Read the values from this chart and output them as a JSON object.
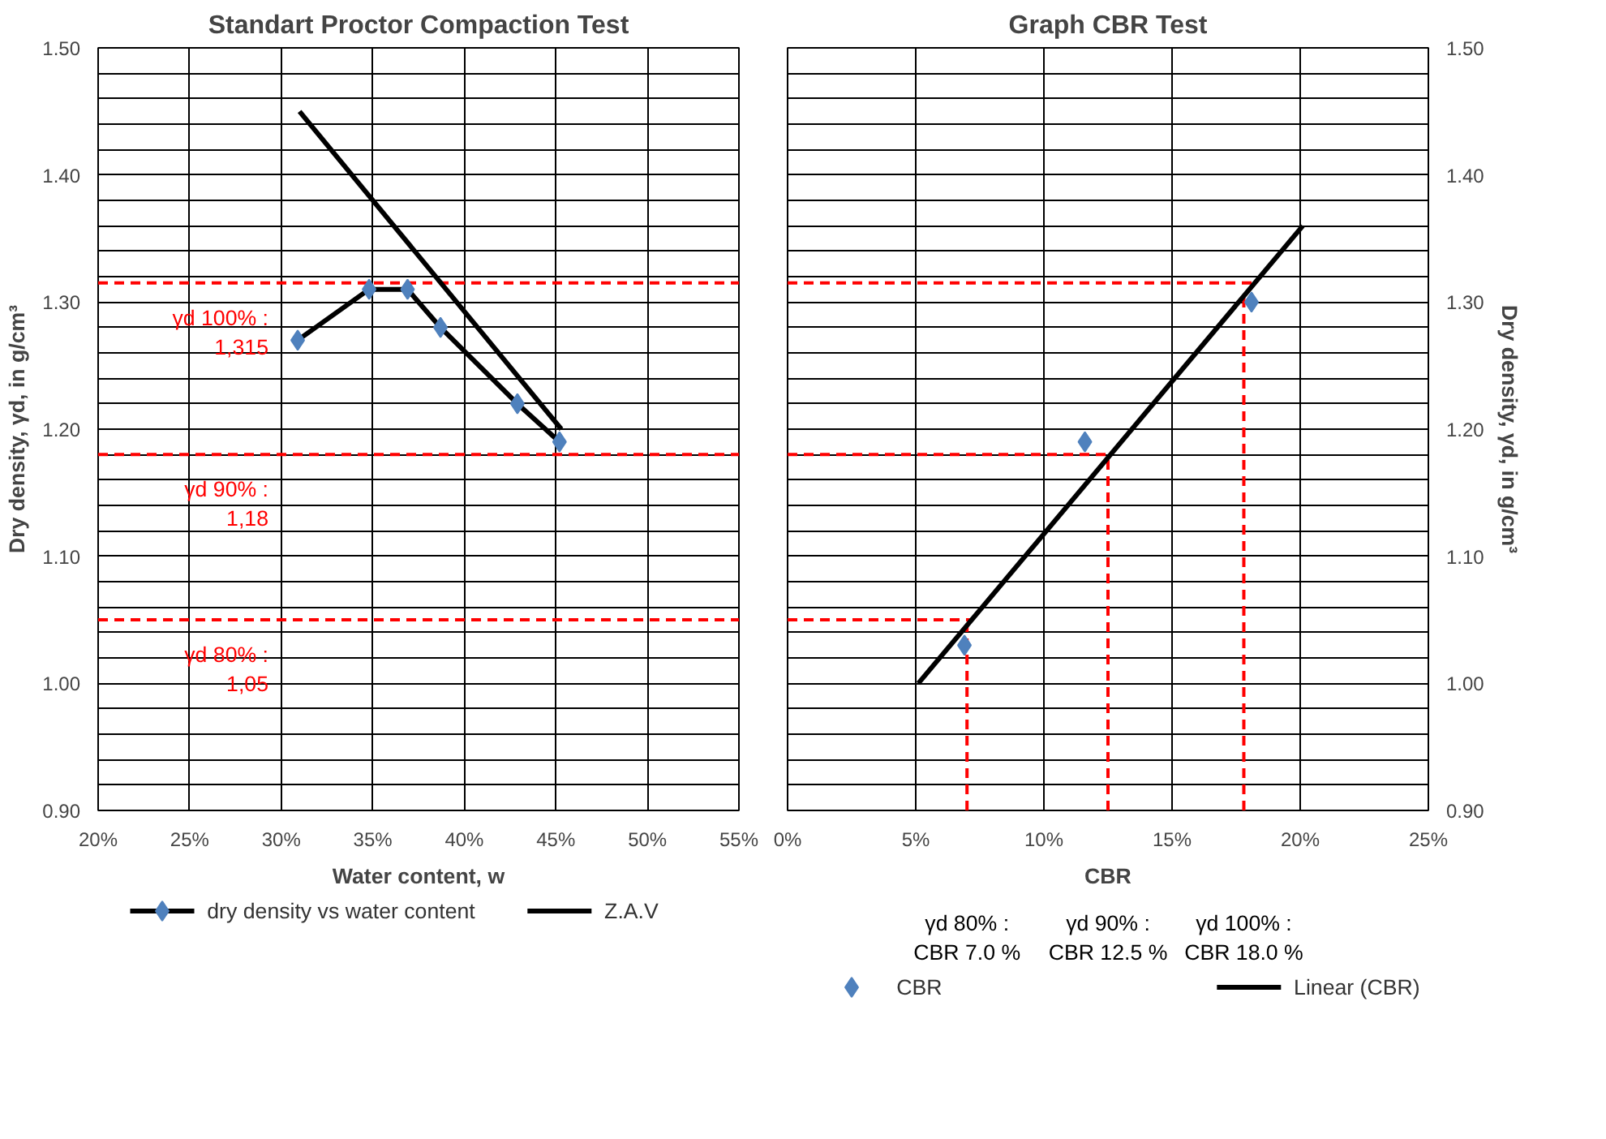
{
  "chart_data": [
    {
      "type": "line",
      "title": "Standart Proctor Compaction Test",
      "xlabel": "Water content, w",
      "ylabel": "Dry density, γd, in g/cm³",
      "xlim": [
        20,
        55
      ],
      "xticks": [
        {
          "value": 20,
          "label": "20%"
        },
        {
          "value": 25,
          "label": "25%"
        },
        {
          "value": 30,
          "label": "30%"
        },
        {
          "value": 35,
          "label": "35%"
        },
        {
          "value": 40,
          "label": "40%"
        },
        {
          "value": 45,
          "label": "45%"
        },
        {
          "value": 50,
          "label": "50%"
        },
        {
          "value": 55,
          "label": "55%"
        }
      ],
      "ylim": [
        0.9,
        1.5
      ],
      "yticks": [
        {
          "value": 0.9,
          "label": "0.90"
        },
        {
          "value": 0.92,
          "label": null
        },
        {
          "value": 0.94,
          "label": null
        },
        {
          "value": 0.96,
          "label": null
        },
        {
          "value": 0.98,
          "label": null
        },
        {
          "value": 1.0,
          "label": "1.00"
        },
        {
          "value": 1.02,
          "label": null
        },
        {
          "value": 1.04,
          "label": null
        },
        {
          "value": 1.06,
          "label": null
        },
        {
          "value": 1.08,
          "label": null
        },
        {
          "value": 1.1,
          "label": "1.10"
        },
        {
          "value": 1.12,
          "label": null
        },
        {
          "value": 1.14,
          "label": null
        },
        {
          "value": 1.16,
          "label": null
        },
        {
          "value": 1.18,
          "label": null
        },
        {
          "value": 1.2,
          "label": "1.20"
        },
        {
          "value": 1.22,
          "label": null
        },
        {
          "value": 1.24,
          "label": null
        },
        {
          "value": 1.26,
          "label": null
        },
        {
          "value": 1.28,
          "label": null
        },
        {
          "value": 1.3,
          "label": "1.30"
        },
        {
          "value": 1.32,
          "label": null
        },
        {
          "value": 1.34,
          "label": null
        },
        {
          "value": 1.36,
          "label": null
        },
        {
          "value": 1.38,
          "label": null
        },
        {
          "value": 1.4,
          "label": "1.40"
        },
        {
          "value": 1.42,
          "label": null
        },
        {
          "value": 1.44,
          "label": null
        },
        {
          "value": 1.46,
          "label": null
        },
        {
          "value": 1.48,
          "label": null
        },
        {
          "value": 1.5,
          "label": "1.50"
        }
      ],
      "grid": true,
      "legend": "bottom",
      "series": [
        {
          "name": "dry density vs water content",
          "marker": "diamond",
          "color": "#000000",
          "colors": [
            "#4f81bd",
            "#4f81bd",
            "#4f81bd",
            "#4f81bd",
            "#4f81bd",
            "#4f81bd"
          ],
          "x": [
            30.9,
            34.8,
            36.9,
            38.7,
            42.9,
            45.2
          ],
          "values": [
            1.27,
            1.31,
            1.31,
            1.28,
            1.22,
            1.19
          ]
        },
        {
          "name": "Z.A.V",
          "color": "#000000",
          "x": [
            31,
            45.3
          ],
          "values": [
            1.45,
            1.2
          ]
        }
      ],
      "ref_lines": [
        {
          "axis": "y",
          "value": 1.315,
          "color": "#ff0000",
          "line_style": "dashed"
        },
        {
          "axis": "y",
          "value": 1.18,
          "color": "#ff0000",
          "line_style": "dashed"
        },
        {
          "axis": "y",
          "value": 1.05,
          "color": "#ff0000",
          "line_style": "dashed"
        }
      ],
      "annotations": [
        "γd 100% :\n1,315",
        "γd 90% :\n1,18",
        "γd 80% :\n1,05"
      ]
    },
    {
      "type": "line",
      "title": "Graph CBR Test",
      "xlabel": "CBR",
      "ylabel": "Dry density, γd, in g/cm³",
      "xlim": [
        0,
        25
      ],
      "xticks": [
        {
          "value": 0,
          "label": "0%"
        },
        {
          "value": 5,
          "label": "5%"
        },
        {
          "value": 10,
          "label": "10%"
        },
        {
          "value": 15,
          "label": "15%"
        },
        {
          "value": 20,
          "label": "20%"
        },
        {
          "value": 25,
          "label": "25%"
        }
      ],
      "ylim": [
        0.9,
        1.5
      ],
      "yticks": [
        {
          "value": 0.9,
          "label": "0.90"
        },
        {
          "value": 0.92,
          "label": null
        },
        {
          "value": 0.94,
          "label": null
        },
        {
          "value": 0.96,
          "label": null
        },
        {
          "value": 0.98,
          "label": null
        },
        {
          "value": 1.0,
          "label": "1.00"
        },
        {
          "value": 1.02,
          "label": null
        },
        {
          "value": 1.04,
          "label": null
        },
        {
          "value": 1.06,
          "label": null
        },
        {
          "value": 1.08,
          "label": null
        },
        {
          "value": 1.1,
          "label": "1.10"
        },
        {
          "value": 1.12,
          "label": null
        },
        {
          "value": 1.14,
          "label": null
        },
        {
          "value": 1.16,
          "label": null
        },
        {
          "value": 1.18,
          "label": null
        },
        {
          "value": 1.2,
          "label": "1.20"
        },
        {
          "value": 1.22,
          "label": null
        },
        {
          "value": 1.24,
          "label": null
        },
        {
          "value": 1.26,
          "label": null
        },
        {
          "value": 1.28,
          "label": null
        },
        {
          "value": 1.3,
          "label": "1.30"
        },
        {
          "value": 1.32,
          "label": null
        },
        {
          "value": 1.34,
          "label": null
        },
        {
          "value": 1.36,
          "label": null
        },
        {
          "value": 1.38,
          "label": null
        },
        {
          "value": 1.4,
          "label": "1.40"
        },
        {
          "value": 1.42,
          "label": null
        },
        {
          "value": 1.44,
          "label": null
        },
        {
          "value": 1.46,
          "label": null
        },
        {
          "value": 1.48,
          "label": null
        },
        {
          "value": 1.5,
          "label": "1.50"
        }
      ],
      "grid": true,
      "legend": "bottom",
      "series": [
        {
          "name": "CBR",
          "type": "scatter",
          "marker": "diamond",
          "color": "#4f81bd",
          "x": [
            6.9,
            11.6,
            18.1
          ],
          "values": [
            1.03,
            1.19,
            1.3
          ]
        },
        {
          "name": "Linear (CBR)",
          "color": "#000000",
          "x": [
            5.1,
            20.1
          ],
          "values": [
            1.0,
            1.36
          ]
        }
      ],
      "ref_lines": [
        {
          "axis": "y",
          "value": 1.315,
          "color": "#ff0000",
          "line_style": "dashed"
        },
        {
          "axis": "y",
          "value": 1.18,
          "color": "#ff0000",
          "line_style": "dashed"
        },
        {
          "axis": "y",
          "value": 1.05,
          "color": "#ff0000",
          "line_style": "dashed"
        },
        {
          "axis": "x",
          "value": 7,
          "color": "#ff0000",
          "line_style": "dashed"
        },
        {
          "axis": "x",
          "value": 12.5,
          "color": "#ff0000",
          "line_style": "dashed"
        },
        {
          "axis": "x",
          "value": 17.8,
          "color": "#ff0000",
          "line_style": "dashed"
        }
      ],
      "annotations": [
        "γd 80% :\nCBR 7.0 %",
        "γd 90% :\nCBR 12.5 %",
        "γd 100% :\nCBR 18.0 %"
      ]
    }
  ]
}
